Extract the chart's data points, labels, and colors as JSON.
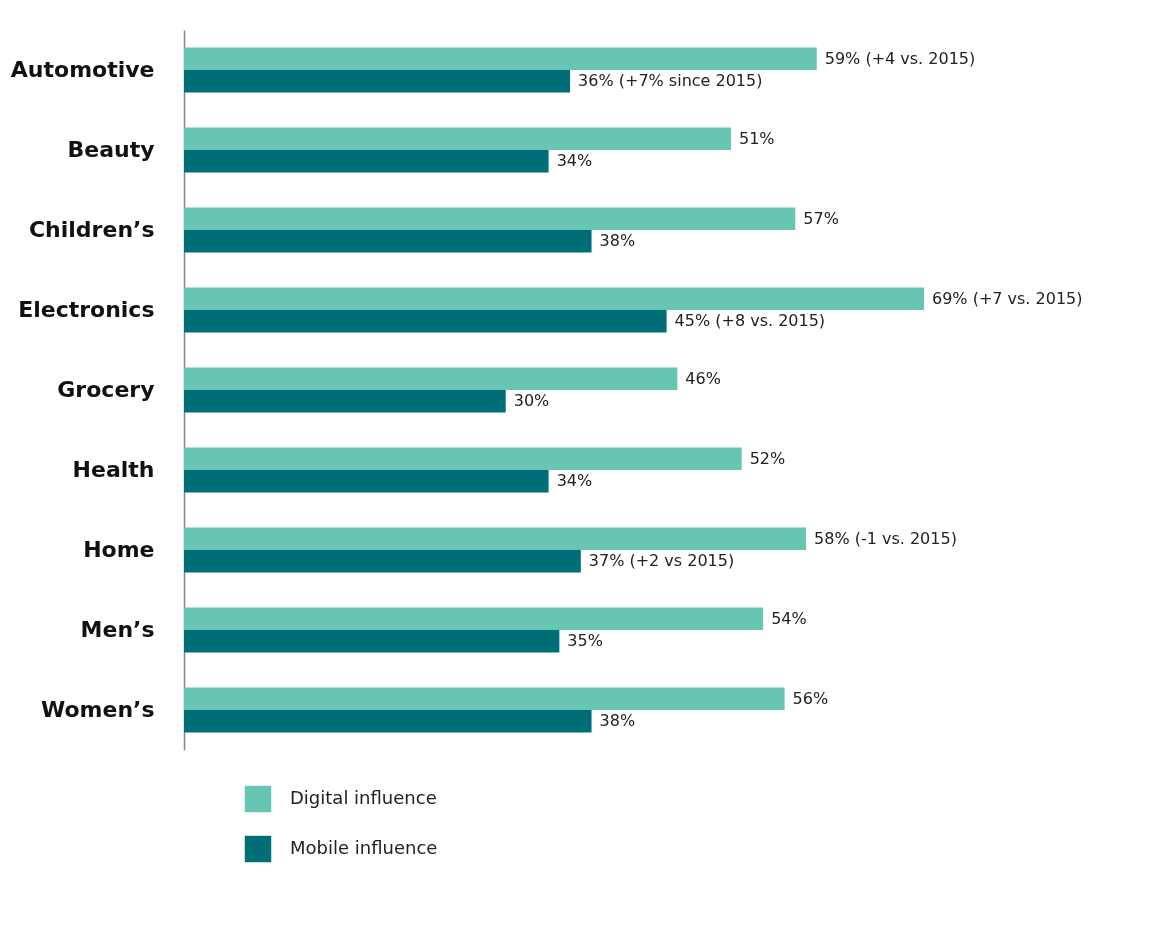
{
  "chart_data": {
    "type": "bar",
    "orientation": "horizontal",
    "legend": "bottom left",
    "categories": [
      "Automotive",
      "Beauty",
      "Children’s",
      "Electronics",
      "Grocery",
      "Health",
      "Home",
      "Men’s",
      "Women’s"
    ],
    "series": [
      {
        "name": "Digital influence",
        "color": "#66c5b3",
        "values": [
          59,
          51,
          57,
          69,
          46,
          52,
          58,
          54,
          56
        ],
        "value_labels": [
          "59% (+4 vs. 2015)",
          "51%",
          "57%",
          "69% (+7 vs. 2015)",
          "46%",
          "52%",
          "58% (-1 vs. 2015)",
          "54%",
          "56%"
        ]
      },
      {
        "name": "Mobile influence",
        "color": "#006e77",
        "values": [
          36,
          34,
          38,
          45,
          30,
          34,
          37,
          35,
          38
        ],
        "value_labels": [
          "36% (+7% since 2015)",
          "34%",
          "38%",
          "45% (+8 vs. 2015)",
          "30%",
          "34%",
          "37% (+2 vs 2015)",
          "35%",
          "38%"
        ]
      }
    ]
  }
}
